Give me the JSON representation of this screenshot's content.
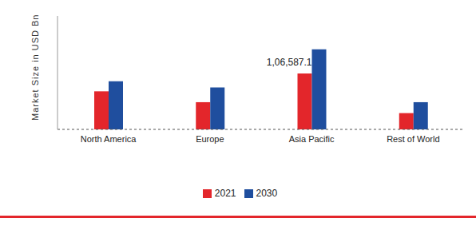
{
  "chart_data": {
    "type": "bar",
    "y_label": "Market Size in USD Bn",
    "categories": [
      "North America",
      "Europe",
      "Asia Pacific",
      "Rest of World"
    ],
    "series": [
      {
        "name": "2021",
        "color": "#e3262b",
        "values": [
          72500,
          51800,
          106587.1,
          31000
        ],
        "value_labels": [
          null,
          null,
          "1,06,587.1",
          null
        ]
      },
      {
        "name": "2030",
        "color": "#1f4e9e",
        "values": [
          91800,
          80000,
          152500,
          51800
        ]
      }
    ],
    "ylim": [
      0,
      216000
    ],
    "yticks": [],
    "grid": false,
    "legend": "bottom",
    "tick_labels": "x"
  }
}
